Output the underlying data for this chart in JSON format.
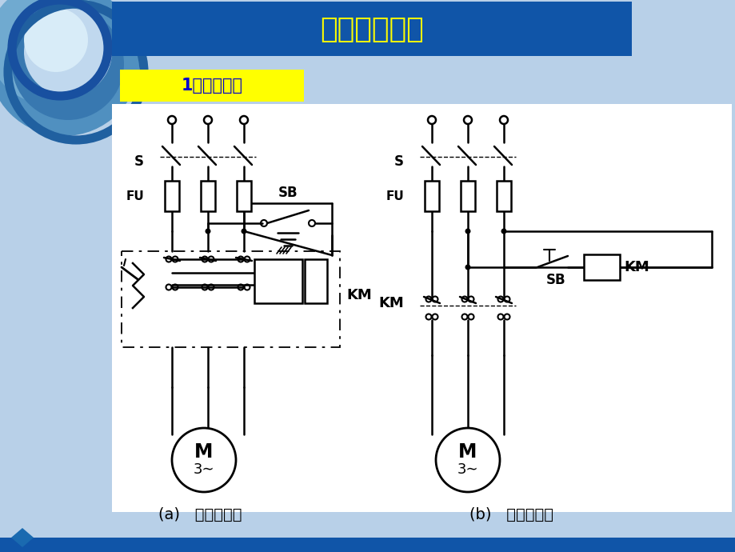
{
  "title": "简单起停控制",
  "subtitle": "1、点动控制",
  "label_a": "(a)   接线示意图",
  "label_b": "(b)   电气原理图",
  "bg_color": "#b8d0e8",
  "header_bg": "#1055a8",
  "title_color": "#ffff00",
  "subtitle_bg": "#ffff00",
  "subtitle_color": "#0000cc",
  "line_color": "#000000",
  "white": "#ffffff",
  "bottom_bar_color": "#1055a8",
  "diamond_color": "#1a6ab0",
  "S_label": "S",
  "FU_label": "FU",
  "KM_label": "KM",
  "SB_label": "SB",
  "M_label": "M",
  "tilde_label": "3∼"
}
